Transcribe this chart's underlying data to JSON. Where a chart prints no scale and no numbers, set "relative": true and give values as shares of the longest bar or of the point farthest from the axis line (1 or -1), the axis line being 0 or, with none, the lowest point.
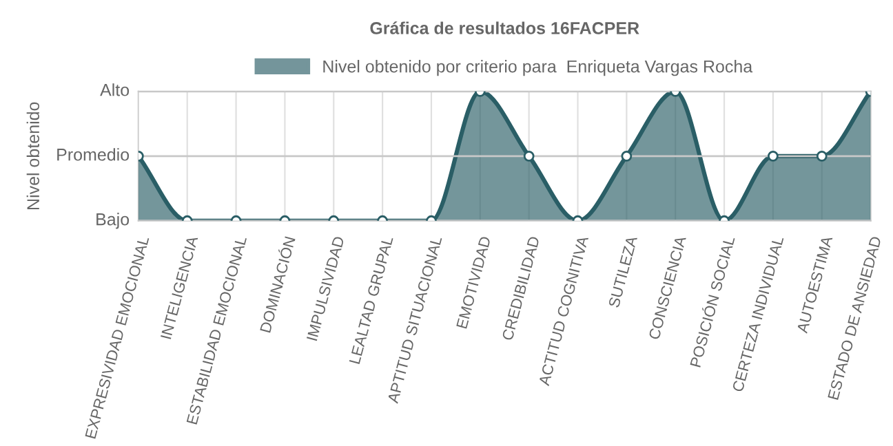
{
  "chart_data": {
    "type": "area",
    "title": "Gráfica de resultados 16FACPER",
    "ylabel": "Nivel obtenido",
    "categories": [
      "EXPRESIVIDAD EMOCIONAL",
      "INTELIGENCIA",
      "ESTABILIDAD EMOCIONAL",
      "DOMINACIÓN",
      "IMPULSIVIDAD",
      "LEALTAD GRUPAL",
      "APTITUD SITUACIONAL",
      "EMOTIVIDAD",
      "CREDIBILIDAD",
      "ACTITUD COGNITIVA",
      "SUTILEZA",
      "CONSCIENCIA",
      "POSICIÓN SOCIAL",
      "CERTEZA INDIVIDUAL",
      "AUTOESTIMA",
      "ESTADO DE ANSIEDAD"
    ],
    "series": [
      {
        "name": "Nivel obtenido por criterio para  Enriqueta Vargas Rocha",
        "color": "#2a5e66",
        "values": [
          0.5,
          0,
          0,
          0,
          0,
          0,
          0,
          1,
          0.5,
          0,
          0.5,
          1,
          0,
          0.5,
          0.5,
          1
        ]
      }
    ],
    "relative": true,
    "ref_lines": [
      {
        "axis": "y",
        "value": 0,
        "label": "Bajo",
        "color": "#c8c8c8"
      },
      {
        "axis": "y",
        "value": 0.5,
        "label": "Promedio",
        "color": "#c8c8c8"
      },
      {
        "axis": "y",
        "value": 1,
        "label": "Alto",
        "color": "#c8c8c8"
      }
    ],
    "grid": "x",
    "legend": "top",
    "marker": "circle",
    "line_style": "solid"
  }
}
